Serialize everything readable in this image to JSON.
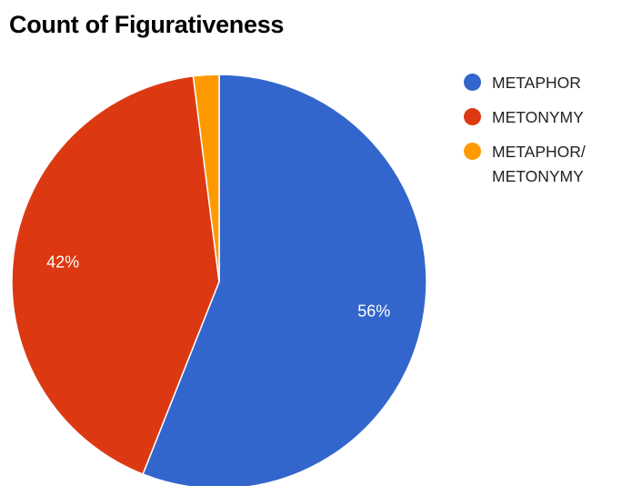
{
  "chart_data": {
    "type": "pie",
    "title": "Count of Figurativeness",
    "slices": [
      {
        "label": "METAPHOR",
        "value": 56,
        "display": "56%",
        "color": "#3366cc"
      },
      {
        "label": "METONYMY",
        "value": 42,
        "display": "42%",
        "color": "#dc3912"
      },
      {
        "label": "METAPHOR/ METONYMY",
        "value": 2,
        "display": "",
        "color": "#ff9900"
      }
    ],
    "legend_position": "right"
  }
}
